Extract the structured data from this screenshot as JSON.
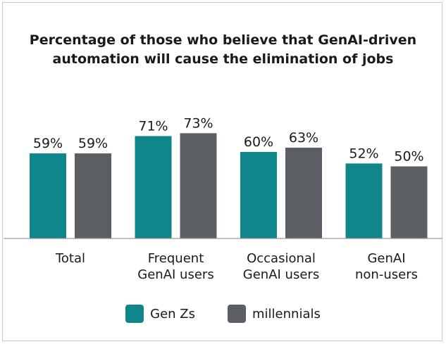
{
  "chart_data": {
    "type": "bar",
    "title_lines": [
      "Percentage of those who believe that GenAI-driven",
      "automation will cause the elimination of jobs"
    ],
    "categories": [
      [
        "Total"
      ],
      [
        "Frequent",
        "GenAI users"
      ],
      [
        "Occasional",
        "GenAI users"
      ],
      [
        "GenAI",
        "non-users"
      ]
    ],
    "series": [
      {
        "name": "Gen Zs",
        "color": "#0f868c",
        "values": [
          59,
          71,
          60,
          52
        ]
      },
      {
        "name": "millennials",
        "color": "#5b5f64",
        "values": [
          59,
          73,
          63,
          50
        ]
      }
    ],
    "value_suffix": "%",
    "ylim": [
      0,
      100
    ],
    "grid": false,
    "legend_position": "bottom-center"
  }
}
